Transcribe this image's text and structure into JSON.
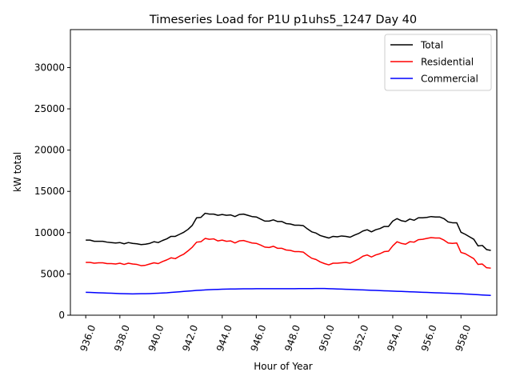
{
  "chart_data": {
    "type": "line",
    "title": "Timeseries Load for P1U p1uhs5_1247  Day 40",
    "xlabel": "Hour of Year",
    "ylabel": "kW total",
    "xlim": [
      935.1,
      960.1
    ],
    "ylim": [
      0,
      34600
    ],
    "xticks": [
      936,
      938,
      940,
      942,
      944,
      946,
      948,
      950,
      952,
      954,
      956,
      958
    ],
    "xtick_labels": [
      "936.0",
      "938.0",
      "940.0",
      "942.0",
      "944.0",
      "946.0",
      "948.0",
      "950.0",
      "952.0",
      "954.0",
      "956.0",
      "958.0"
    ],
    "yticks": [
      0,
      5000,
      10000,
      15000,
      20000,
      25000,
      30000
    ],
    "ytick_labels": [
      "0",
      "5000",
      "10000",
      "15000",
      "20000",
      "25000",
      "30000"
    ],
    "grid": false,
    "legend_position": "top-right",
    "step_hours": 0.25,
    "x_start": 936.0,
    "series": [
      {
        "name": "Total",
        "color": "#000000",
        "values": [
          9100,
          9100,
          8950,
          8950,
          8950,
          8850,
          8800,
          8750,
          8800,
          8650,
          8800,
          8700,
          8650,
          8550,
          8600,
          8700,
          8900,
          8800,
          9050,
          9250,
          9550,
          9550,
          9800,
          10050,
          10400,
          10900,
          11800,
          11850,
          12350,
          12250,
          12250,
          12100,
          12200,
          12100,
          12150,
          11950,
          12200,
          12250,
          12100,
          11950,
          11900,
          11650,
          11400,
          11400,
          11550,
          11350,
          11350,
          11100,
          11050,
          10900,
          10900,
          10850,
          10450,
          10100,
          9950,
          9650,
          9500,
          9350,
          9550,
          9500,
          9600,
          9550,
          9450,
          9700,
          9900,
          10200,
          10350,
          10100,
          10350,
          10500,
          10750,
          10750,
          11400,
          11700,
          11450,
          11350,
          11650,
          11500,
          11800,
          11800,
          11850,
          11950,
          11900,
          11900,
          11700,
          11300,
          11200,
          11200,
          10050,
          9800,
          9500,
          9200,
          8400,
          8450,
          7950,
          7850
        ]
      },
      {
        "name": "Residential",
        "color": "#ff0000",
        "values": [
          6400,
          6400,
          6300,
          6350,
          6350,
          6250,
          6250,
          6200,
          6300,
          6150,
          6300,
          6200,
          6150,
          6000,
          6050,
          6200,
          6350,
          6250,
          6500,
          6700,
          6950,
          6850,
          7150,
          7400,
          7800,
          8250,
          8850,
          8900,
          9300,
          9200,
          9250,
          9000,
          9100,
          8950,
          9000,
          8750,
          9000,
          9050,
          8900,
          8750,
          8700,
          8500,
          8250,
          8200,
          8350,
          8100,
          8100,
          7900,
          7850,
          7700,
          7700,
          7650,
          7250,
          6900,
          6750,
          6450,
          6250,
          6100,
          6300,
          6300,
          6350,
          6400,
          6300,
          6550,
          6800,
          7150,
          7300,
          7050,
          7300,
          7450,
          7700,
          7750,
          8400,
          8900,
          8700,
          8600,
          8900,
          8850,
          9150,
          9200,
          9300,
          9400,
          9350,
          9350,
          9100,
          8750,
          8700,
          8750,
          7600,
          7450,
          7150,
          6850,
          6150,
          6200,
          5750,
          5700
        ]
      },
      {
        "name": "Commercial",
        "color": "#0000ff",
        "values": [
          2780,
          2760,
          2740,
          2720,
          2700,
          2680,
          2660,
          2640,
          2620,
          2600,
          2590,
          2580,
          2590,
          2600,
          2610,
          2620,
          2640,
          2660,
          2690,
          2720,
          2760,
          2800,
          2840,
          2880,
          2920,
          2960,
          3000,
          3030,
          3060,
          3090,
          3110,
          3130,
          3150,
          3160,
          3170,
          3180,
          3190,
          3200,
          3200,
          3200,
          3210,
          3210,
          3210,
          3210,
          3210,
          3210,
          3210,
          3210,
          3210,
          3210,
          3220,
          3220,
          3220,
          3220,
          3230,
          3230,
          3230,
          3210,
          3200,
          3180,
          3160,
          3140,
          3120,
          3100,
          3080,
          3060,
          3040,
          3020,
          3000,
          2980,
          2960,
          2940,
          2920,
          2900,
          2880,
          2860,
          2840,
          2820,
          2800,
          2780,
          2760,
          2740,
          2720,
          2700,
          2680,
          2660,
          2640,
          2620,
          2600,
          2570,
          2540,
          2510,
          2480,
          2450,
          2420,
          2400
        ]
      }
    ]
  }
}
